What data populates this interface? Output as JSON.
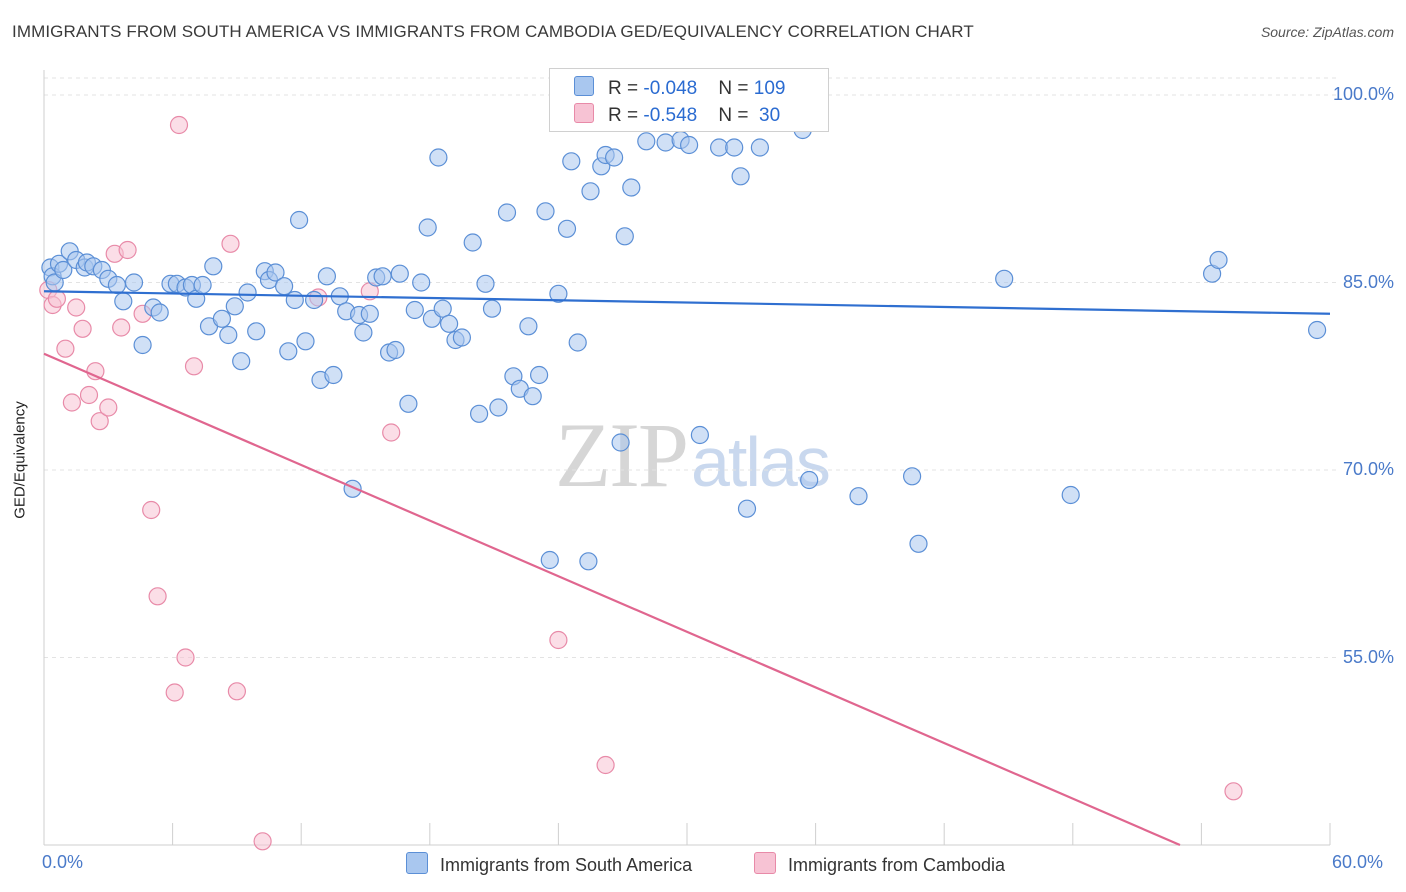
{
  "title": "IMMIGRANTS FROM SOUTH AMERICA VS IMMIGRANTS FROM CAMBODIA GED/EQUIVALENCY CORRELATION CHART",
  "source": "Source: ZipAtlas.com",
  "watermark": {
    "zip": "ZIP",
    "atlas": "atlas"
  },
  "colors": {
    "blue_fill": "#a9c7ef",
    "blue_stroke": "#5b8fd6",
    "blue_line": "#2f6fd0",
    "pink_fill": "#f7c3d4",
    "pink_stroke": "#e88aa8",
    "pink_line": "#e0668f",
    "tick": "#4a7ac9",
    "grid": "#e3e3e3"
  },
  "legend_top": {
    "row1": {
      "r_label": "R = ",
      "r_value": "-0.048",
      "n_label": "N = ",
      "n_value": "109"
    },
    "row2": {
      "r_label": "R = ",
      "r_value": "-0.548",
      "n_label": "N = ",
      "n_value": " 30"
    }
  },
  "legend_bottom": {
    "s1": "Immigrants from South America",
    "s2": "Immigrants from Cambodia"
  },
  "chart_data": {
    "type": "scatter",
    "title": "IMMIGRANTS FROM SOUTH AMERICA VS IMMIGRANTS FROM CAMBODIA GED/EQUIVALENCY CORRELATION CHART",
    "xlabel": "",
    "ylabel": "GED/Equivalency",
    "xlim": [
      0,
      60
    ],
    "ylim": [
      40,
      102
    ],
    "x_tick_labels": [
      "0.0%",
      "60.0%"
    ],
    "y_ticks": [
      55,
      70,
      85,
      100
    ],
    "y_tick_labels": [
      "55.0%",
      "70.0%",
      "85.0%",
      "100.0%"
    ],
    "grid": "horizontal dashed",
    "legend": "top-center and bottom",
    "series": [
      {
        "name": "Immigrants from South America",
        "r": -0.048,
        "n": 109,
        "trend": [
          [
            0,
            84.3
          ],
          [
            60,
            82.5
          ]
        ],
        "points": [
          [
            0.3,
            86.2
          ],
          [
            0.4,
            85.5
          ],
          [
            0.5,
            85.0
          ],
          [
            0.7,
            86.5
          ],
          [
            0.9,
            86.0
          ],
          [
            1.2,
            87.5
          ],
          [
            1.5,
            86.8
          ],
          [
            1.9,
            86.2
          ],
          [
            2.0,
            86.6
          ],
          [
            2.3,
            86.3
          ],
          [
            2.7,
            86.0
          ],
          [
            3.0,
            85.3
          ],
          [
            3.4,
            84.8
          ],
          [
            3.7,
            83.5
          ],
          [
            4.2,
            85.0
          ],
          [
            4.6,
            80.0
          ],
          [
            5.1,
            83.0
          ],
          [
            5.4,
            82.6
          ],
          [
            5.9,
            84.9
          ],
          [
            6.2,
            84.9
          ],
          [
            6.6,
            84.6
          ],
          [
            6.9,
            84.8
          ],
          [
            7.1,
            83.7
          ],
          [
            7.4,
            84.8
          ],
          [
            7.7,
            81.5
          ],
          [
            7.9,
            86.3
          ],
          [
            8.3,
            82.1
          ],
          [
            8.6,
            80.8
          ],
          [
            8.9,
            83.1
          ],
          [
            9.2,
            78.7
          ],
          [
            9.5,
            84.2
          ],
          [
            9.9,
            81.1
          ],
          [
            10.3,
            85.9
          ],
          [
            10.5,
            85.2
          ],
          [
            10.8,
            85.8
          ],
          [
            11.2,
            84.7
          ],
          [
            11.4,
            79.5
          ],
          [
            11.7,
            83.6
          ],
          [
            11.9,
            90.0
          ],
          [
            12.2,
            80.3
          ],
          [
            12.6,
            83.6
          ],
          [
            12.9,
            77.2
          ],
          [
            13.2,
            85.5
          ],
          [
            13.5,
            77.6
          ],
          [
            13.8,
            83.9
          ],
          [
            14.1,
            82.7
          ],
          [
            14.4,
            68.5
          ],
          [
            14.7,
            82.4
          ],
          [
            14.9,
            81.0
          ],
          [
            15.2,
            82.5
          ],
          [
            15.5,
            85.4
          ],
          [
            15.8,
            85.5
          ],
          [
            16.1,
            79.4
          ],
          [
            16.4,
            79.6
          ],
          [
            16.6,
            85.7
          ],
          [
            17.0,
            75.3
          ],
          [
            17.3,
            82.8
          ],
          [
            17.6,
            85.0
          ],
          [
            17.9,
            89.4
          ],
          [
            18.1,
            82.1
          ],
          [
            18.4,
            95.0
          ],
          [
            18.6,
            82.9
          ],
          [
            18.9,
            81.7
          ],
          [
            19.2,
            80.4
          ],
          [
            19.5,
            80.6
          ],
          [
            20.0,
            88.2
          ],
          [
            20.3,
            74.5
          ],
          [
            20.6,
            84.9
          ],
          [
            20.9,
            82.9
          ],
          [
            21.2,
            75.0
          ],
          [
            21.6,
            90.6
          ],
          [
            21.9,
            77.5
          ],
          [
            22.2,
            76.5
          ],
          [
            22.6,
            81.5
          ],
          [
            22.8,
            75.9
          ],
          [
            23.1,
            77.6
          ],
          [
            23.6,
            62.8
          ],
          [
            23.4,
            90.7
          ],
          [
            24.0,
            84.1
          ],
          [
            24.4,
            89.3
          ],
          [
            24.6,
            94.7
          ],
          [
            24.9,
            80.2
          ],
          [
            25.4,
            62.7
          ],
          [
            25.5,
            92.3
          ],
          [
            26.0,
            94.3
          ],
          [
            26.2,
            95.2
          ],
          [
            26.6,
            95.0
          ],
          [
            26.9,
            72.2
          ],
          [
            27.1,
            88.7
          ],
          [
            27.4,
            92.6
          ],
          [
            28.1,
            96.3
          ],
          [
            29.0,
            96.2
          ],
          [
            29.7,
            96.4
          ],
          [
            30.1,
            96.0
          ],
          [
            30.6,
            72.8
          ],
          [
            31.5,
            95.8
          ],
          [
            32.2,
            95.8
          ],
          [
            32.5,
            93.5
          ],
          [
            32.8,
            66.9
          ],
          [
            33.4,
            95.8
          ],
          [
            34.3,
            99.7
          ],
          [
            35.4,
            97.2
          ],
          [
            35.7,
            69.2
          ],
          [
            38.0,
            67.9
          ],
          [
            40.5,
            69.5
          ],
          [
            40.8,
            64.1
          ],
          [
            44.8,
            85.3
          ],
          [
            47.9,
            68.0
          ],
          [
            54.5,
            85.7
          ],
          [
            54.8,
            86.8
          ],
          [
            59.4,
            81.2
          ]
        ]
      },
      {
        "name": "Immigrants from Cambodia",
        "r": -0.548,
        "n": 30,
        "trend": [
          [
            0,
            79.3
          ],
          [
            53,
            40.0
          ]
        ],
        "points": [
          [
            0.2,
            84.4
          ],
          [
            0.4,
            83.2
          ],
          [
            0.6,
            83.7
          ],
          [
            1.0,
            79.7
          ],
          [
            1.3,
            75.4
          ],
          [
            1.5,
            83.0
          ],
          [
            1.8,
            81.3
          ],
          [
            2.1,
            76.0
          ],
          [
            2.4,
            77.9
          ],
          [
            2.6,
            73.9
          ],
          [
            3.0,
            75.0
          ],
          [
            3.3,
            87.3
          ],
          [
            3.6,
            81.4
          ],
          [
            3.9,
            87.6
          ],
          [
            4.6,
            82.5
          ],
          [
            5.0,
            66.8
          ],
          [
            5.3,
            59.9
          ],
          [
            6.1,
            52.2
          ],
          [
            6.3,
            97.6
          ],
          [
            6.6,
            55.0
          ],
          [
            7.0,
            78.3
          ],
          [
            8.7,
            88.1
          ],
          [
            9.0,
            52.3
          ],
          [
            10.2,
            40.3
          ],
          [
            12.8,
            83.8
          ],
          [
            15.2,
            84.3
          ],
          [
            16.2,
            73.0
          ],
          [
            24.0,
            56.4
          ],
          [
            26.2,
            46.4
          ],
          [
            55.5,
            44.3
          ]
        ]
      }
    ]
  }
}
